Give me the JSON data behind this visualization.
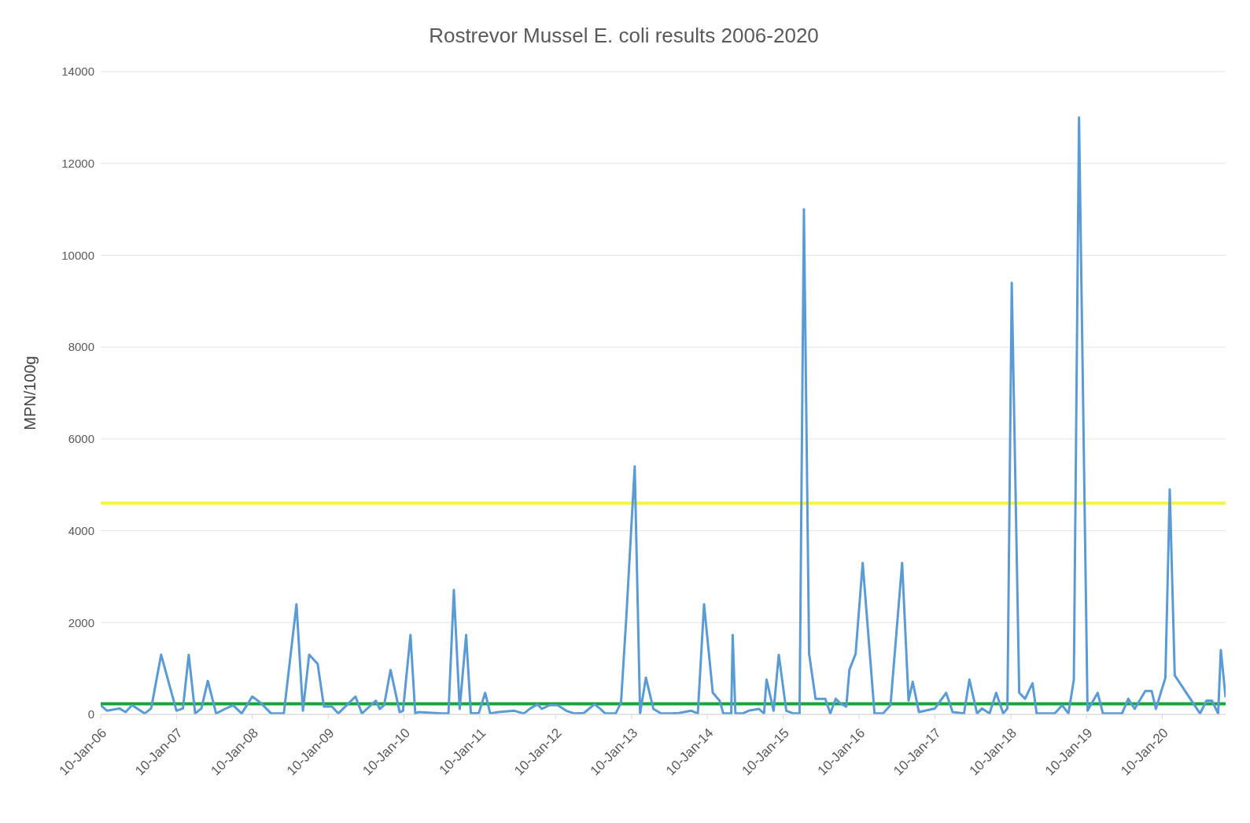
{
  "chart_data": {
    "type": "line",
    "title": "Rostrevor Mussel E. coli results 2006-2020",
    "ylabel": "MPN/100g",
    "xlim": [
      "2006-01-10",
      "2020-11-10"
    ],
    "xticks": [
      {
        "value": "2006-01-10",
        "label": "10-Jan-06"
      },
      {
        "value": "2007-01-10",
        "label": "10-Jan-07"
      },
      {
        "value": "2008-01-10",
        "label": "10-Jan-08"
      },
      {
        "value": "2009-01-10",
        "label": "10-Jan-09"
      },
      {
        "value": "2010-01-10",
        "label": "10-Jan-10"
      },
      {
        "value": "2011-01-10",
        "label": "10-Jan-11"
      },
      {
        "value": "2012-01-10",
        "label": "10-Jan-12"
      },
      {
        "value": "2013-01-10",
        "label": "10-Jan-13"
      },
      {
        "value": "2014-01-10",
        "label": "10-Jan-14"
      },
      {
        "value": "2015-01-10",
        "label": "10-Jan-15"
      },
      {
        "value": "2016-01-10",
        "label": "10-Jan-16"
      },
      {
        "value": "2017-01-10",
        "label": "10-Jan-17"
      },
      {
        "value": "2018-01-10",
        "label": "10-Jan-18"
      },
      {
        "value": "2019-01-10",
        "label": "10-Jan-19"
      },
      {
        "value": "2020-01-10",
        "label": "10-Jan-20"
      }
    ],
    "ylim": [
      0,
      14000
    ],
    "yticks": [
      0,
      2000,
      4000,
      6000,
      8000,
      10000,
      12000,
      14000
    ],
    "grid": "y",
    "marker": "none",
    "line_style": "solid",
    "ref_lines": [
      {
        "axis": "y",
        "value": 4600,
        "label": null,
        "color": "#f5f53c"
      },
      {
        "axis": "y",
        "value": 230,
        "label": null,
        "color": "#16a53a"
      }
    ],
    "series": [
      {
        "color": "#5b9bd5",
        "x": [
          "2006-01-10",
          "2006-02-10",
          "2006-04-10",
          "2006-05-10",
          "2006-06-10",
          "2006-08-10",
          "2006-09-10",
          "2006-10-28",
          "2007-01-10",
          "2007-02-10",
          "2007-03-10",
          "2007-04-10",
          "2007-05-10",
          "2007-06-10",
          "2007-07-20",
          "2007-09-01",
          "2007-10-10",
          "2007-11-20",
          "2008-01-10",
          "2008-02-20",
          "2008-04-10",
          "2008-06-10",
          "2008-08-10",
          "2008-09-10",
          "2008-10-10",
          "2008-11-20",
          "2008-12-20",
          "2009-01-28",
          "2009-02-27",
          "2009-05-21",
          "2009-06-21",
          "2009-08-27",
          "2009-09-15",
          "2009-10-06",
          "2009-11-06",
          "2009-12-20",
          "2010-01-05",
          "2010-02-10",
          "2010-03-05",
          "2010-03-20",
          "2010-07-12",
          "2010-08-12",
          "2010-09-07",
          "2010-10-05",
          "2010-11-05",
          "2010-11-28",
          "2011-01-05",
          "2011-02-05",
          "2011-03-01",
          "2011-04-10",
          "2011-06-25",
          "2011-08-10",
          "2011-09-10",
          "2011-10-15",
          "2011-11-05",
          "2011-12-10",
          "2012-01-20",
          "2012-03-01",
          "2012-04-10",
          "2012-05-25",
          "2012-07-15",
          "2012-08-10",
          "2012-09-05",
          "2012-10-25",
          "2012-11-20",
          "2012-12-15",
          "2013-01-25",
          "2013-02-20",
          "2013-03-20",
          "2013-04-25",
          "2013-06-01",
          "2013-07-20",
          "2013-08-25",
          "2013-10-25",
          "2013-11-25",
          "2013-12-25",
          "2014-02-05",
          "2014-03-10",
          "2014-03-28",
          "2014-05-05",
          "2014-05-12",
          "2014-05-25",
          "2014-06-28",
          "2014-07-28",
          "2014-09-15",
          "2014-10-10",
          "2014-10-22",
          "2014-11-25",
          "2014-12-20",
          "2015-01-25",
          "2015-03-01",
          "2015-03-30",
          "2015-04-20",
          "2015-05-15",
          "2015-06-15",
          "2015-08-01",
          "2015-08-25",
          "2015-09-20",
          "2015-10-10",
          "2015-11-10",
          "2015-11-25",
          "2015-12-25",
          "2016-01-28",
          "2016-03-25",
          "2016-05-05",
          "2016-06-10",
          "2016-08-05",
          "2016-09-05",
          "2016-09-25",
          "2016-10-25",
          "2017-01-10",
          "2017-03-05",
          "2017-04-05",
          "2017-05-30",
          "2017-06-25",
          "2017-08-01",
          "2017-08-25",
          "2017-09-30",
          "2017-11-01",
          "2017-12-05",
          "2017-12-25",
          "2018-01-15",
          "2018-02-20",
          "2018-03-20",
          "2018-04-25",
          "2018-05-15",
          "2018-08-10",
          "2018-09-15",
          "2018-10-15",
          "2018-11-10",
          "2018-12-05",
          "2019-01-15",
          "2019-03-05",
          "2019-03-30",
          "2019-06-30",
          "2019-07-30",
          "2019-08-30",
          "2019-10-20",
          "2019-11-20",
          "2019-12-10",
          "2020-01-25",
          "2020-02-15",
          "2020-03-10",
          "2020-07-10",
          "2020-08-10",
          "2020-09-05",
          "2020-10-05",
          "2020-10-18",
          "2020-11-10"
        ],
        "values": [
          200,
          80,
          130,
          50,
          200,
          20,
          130,
          1300,
          80,
          130,
          1300,
          20,
          130,
          730,
          20,
          120,
          200,
          20,
          390,
          250,
          20,
          20,
          2400,
          80,
          1300,
          1100,
          170,
          170,
          20,
          390,
          20,
          300,
          120,
          200,
          970,
          50,
          80,
          1730,
          20,
          50,
          20,
          20,
          2710,
          120,
          1730,
          20,
          30,
          470,
          20,
          50,
          80,
          20,
          130,
          220,
          120,
          200,
          200,
          80,
          20,
          30,
          220,
          130,
          20,
          20,
          250,
          2070,
          5400,
          20,
          800,
          120,
          20,
          20,
          30,
          80,
          20,
          2400,
          470,
          300,
          20,
          20,
          1730,
          20,
          20,
          80,
          120,
          20,
          760,
          80,
          1300,
          80,
          20,
          20,
          11000,
          1320,
          340,
          340,
          20,
          340,
          250,
          170,
          970,
          1320,
          3300,
          20,
          20,
          200,
          3300,
          300,
          710,
          50,
          130,
          470,
          50,
          20,
          760,
          20,
          130,
          20,
          470,
          20,
          130,
          9400,
          470,
          340,
          680,
          20,
          20,
          200,
          20,
          760,
          13000,
          80,
          470,
          20,
          20,
          340,
          120,
          510,
          510,
          120,
          800,
          4900,
          850,
          20,
          300,
          300,
          20,
          1400,
          370
        ]
      }
    ]
  }
}
